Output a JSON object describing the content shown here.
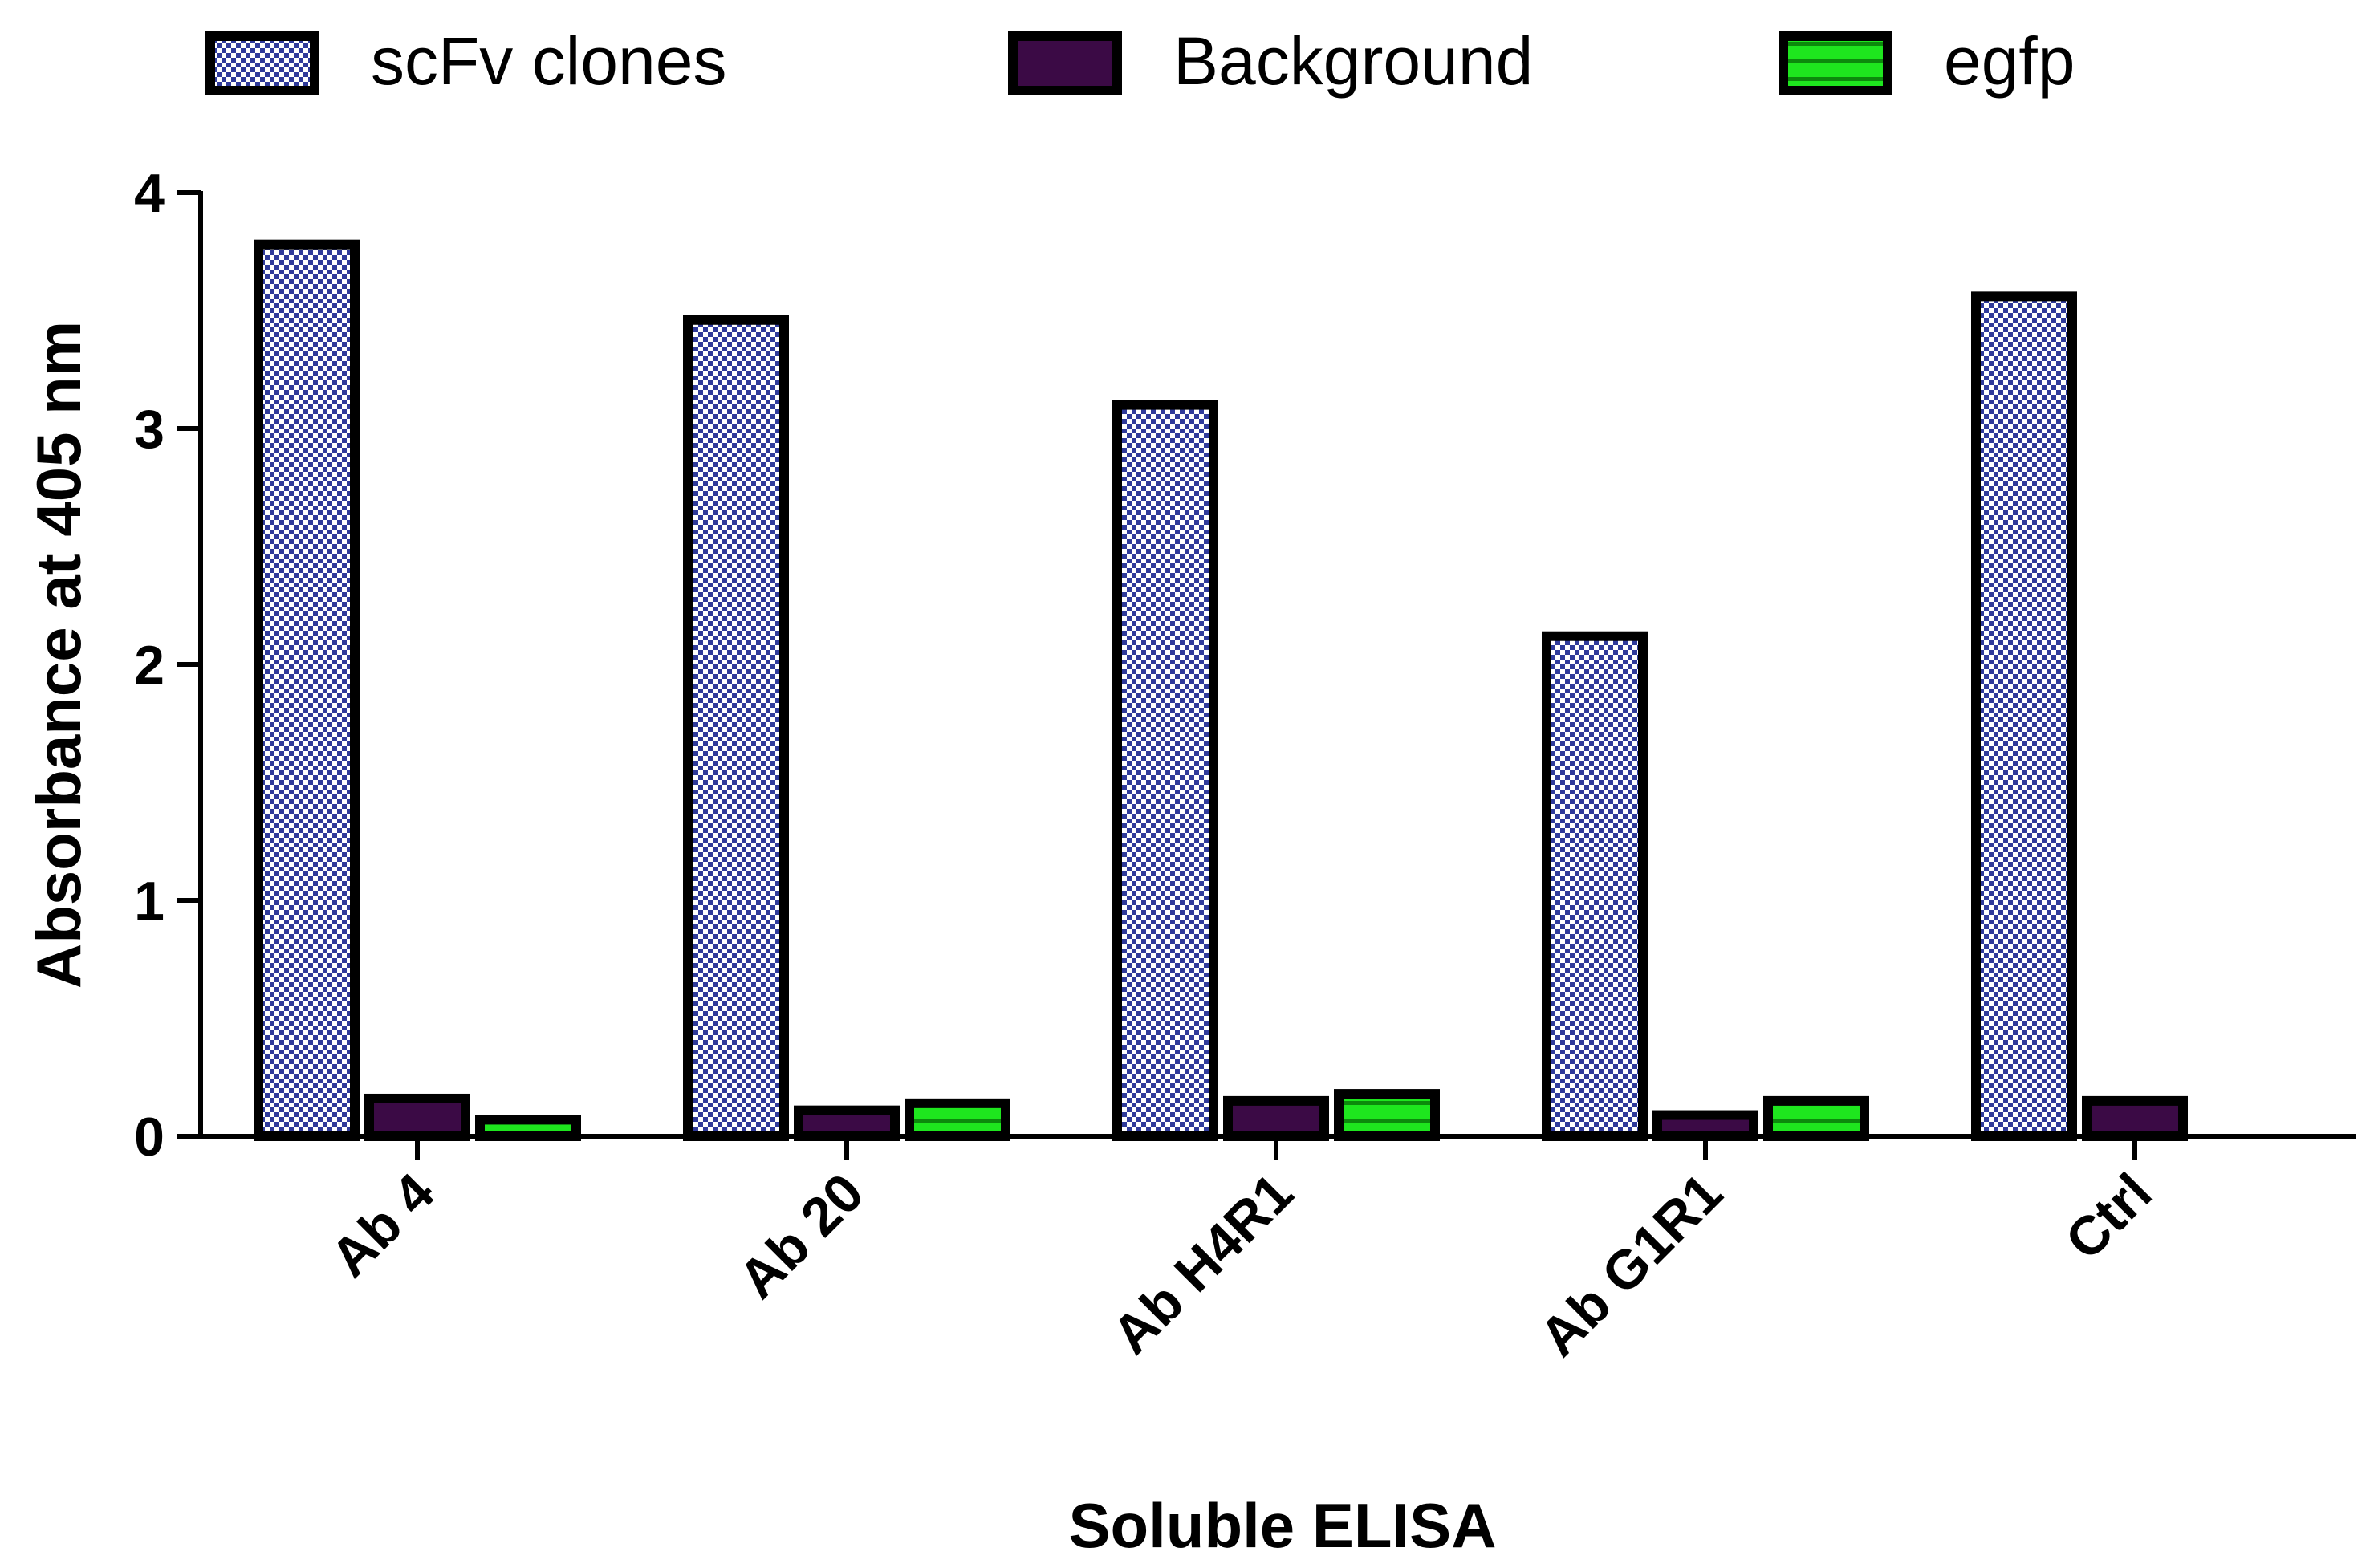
{
  "chart_data": {
    "type": "bar",
    "title": "",
    "xlabel": "Soluble ELISA",
    "ylabel": "Absorbance at 405 nm",
    "ylim": [
      0,
      4
    ],
    "yticks": [
      0,
      1,
      2,
      3,
      4
    ],
    "categories": [
      "Ab 4",
      "Ab 20",
      "Ab H4R1",
      "Ab G1R1",
      "Ctrl"
    ],
    "legend_position": "top",
    "grid": false,
    "series": [
      {
        "name": "scFv clones",
        "color": "#2f3a9a",
        "pattern": "checker",
        "values": [
          3.78,
          3.46,
          3.1,
          2.12,
          3.56
        ]
      },
      {
        "name": "Background",
        "color": "#3b0a45",
        "pattern": "solid",
        "values": [
          0.16,
          0.11,
          0.15,
          0.09,
          0.15
        ]
      },
      {
        "name": "egfp",
        "color": "#1ee61e",
        "pattern": "stripe",
        "values": [
          0.07,
          0.14,
          0.18,
          0.15,
          null
        ]
      }
    ]
  }
}
